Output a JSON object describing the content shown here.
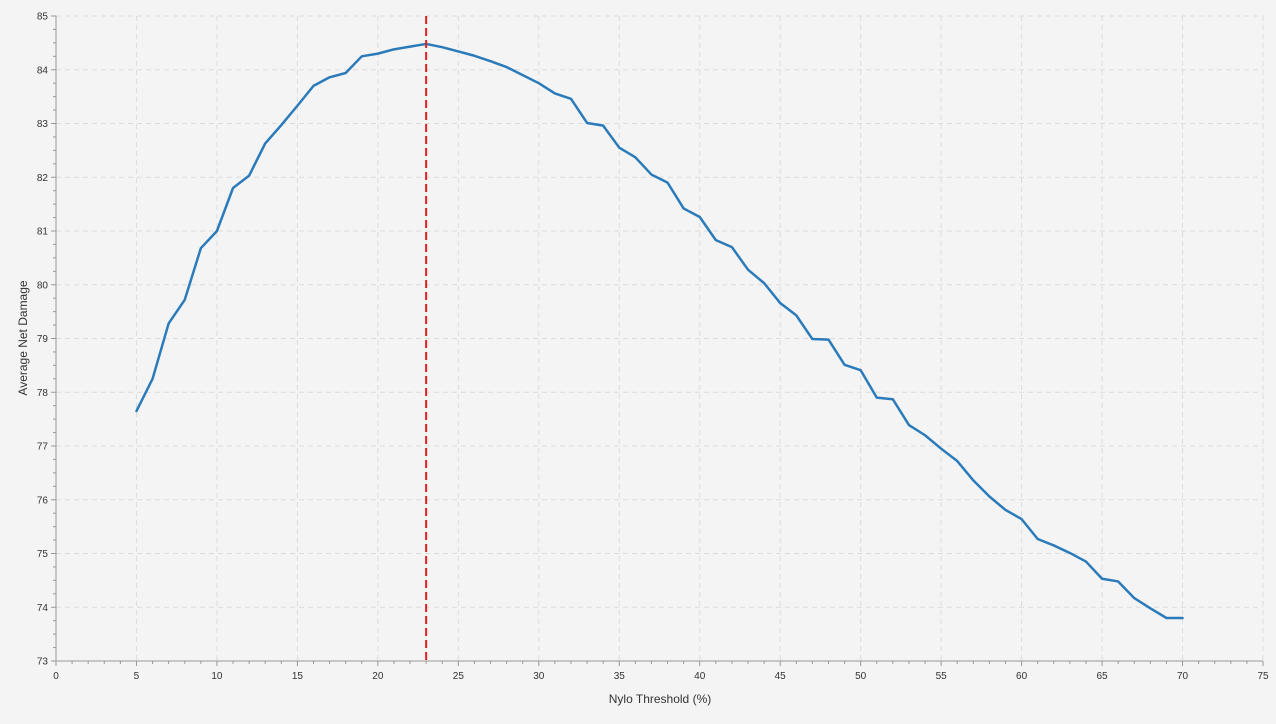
{
  "chart_data": {
    "type": "line",
    "xlabel": "Nylo Threshold (%)",
    "ylabel": "Average Net Damage",
    "xlim": [
      0,
      75
    ],
    "ylim": [
      73,
      85
    ],
    "x_ticks": [
      0,
      5,
      10,
      15,
      20,
      25,
      30,
      35,
      40,
      45,
      50,
      55,
      60,
      65,
      70,
      75
    ],
    "y_ticks": [
      73,
      74,
      75,
      76,
      77,
      78,
      79,
      80,
      81,
      82,
      83,
      84,
      85
    ],
    "grid": true,
    "marker_line": {
      "x": 23,
      "color": "#e02020",
      "style": "dashed"
    },
    "series": [
      {
        "color": "#2b7bba",
        "x": [
          5,
          6,
          7,
          8,
          9,
          10,
          11,
          12,
          13,
          14,
          15,
          16,
          17,
          18,
          19,
          20,
          21,
          22,
          23,
          24,
          25,
          26,
          27,
          28,
          29,
          30,
          31,
          32,
          33,
          34,
          35,
          36,
          37,
          38,
          39,
          40,
          41,
          42,
          43,
          44,
          45,
          46,
          47,
          48,
          49,
          50,
          51,
          52,
          53,
          54,
          55,
          56,
          57,
          58,
          59,
          60,
          61,
          62,
          63,
          64,
          65,
          66,
          67,
          68,
          69,
          70
        ],
        "y": [
          77.65,
          78.25,
          79.28,
          79.72,
          80.68,
          81.0,
          81.8,
          82.03,
          82.63,
          82.97,
          83.33,
          83.7,
          83.86,
          83.94,
          84.25,
          84.3,
          84.38,
          84.43,
          84.48,
          84.42,
          84.34,
          84.26,
          84.16,
          84.05,
          83.9,
          83.75,
          83.56,
          83.46,
          83.01,
          82.96,
          82.55,
          82.37,
          82.05,
          81.9,
          81.42,
          81.26,
          80.83,
          80.7,
          80.28,
          80.03,
          79.66,
          79.43,
          78.99,
          78.98,
          78.51,
          78.41,
          77.9,
          77.87,
          77.39,
          77.2,
          76.95,
          76.72,
          76.36,
          76.06,
          75.81,
          75.64,
          75.27,
          75.15,
          75.01,
          74.85,
          74.53,
          74.48,
          74.17,
          73.98,
          73.8,
          73.8
        ]
      }
    ]
  }
}
